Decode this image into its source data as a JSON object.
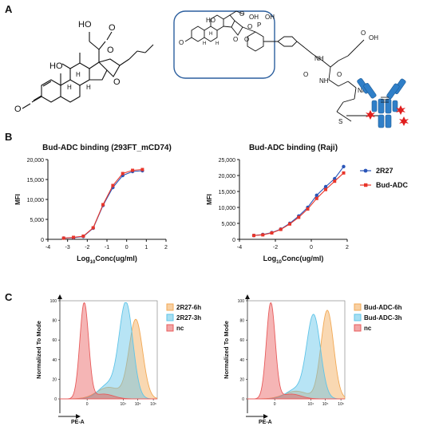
{
  "panels": {
    "a": "A",
    "b": "B",
    "c": "C"
  },
  "molecule": {
    "left_labels": {
      "ho_top": "HO",
      "o_top": "O",
      "ho_ring": "HO",
      "h1": "H",
      "h2": "H",
      "h3": "H",
      "o_ketone": "O",
      "o_ring1": "O",
      "o_ring2": "O"
    },
    "right_labels": {
      "o_ketone": "O",
      "ho": "HO",
      "oh1": "OH",
      "oh2": "OH",
      "p": "P",
      "o1": "O",
      "o2": "O",
      "o3": "O",
      "o4": "O",
      "h1": "H",
      "h2": "H",
      "h3": "H",
      "nh1": "NH",
      "nh2": "NH",
      "nh3": "NH",
      "oh_acid": "OH",
      "o5": "O",
      "o6": "O",
      "o7": "O",
      "s": "S"
    }
  },
  "chart_data": [
    {
      "type": "line",
      "title": "Bud-ADC binding (293FT_mCD74)",
      "xlabel": "Log10Conc(ug/ml)",
      "ylabel": "MFI",
      "xlim": [
        -4,
        2
      ],
      "ylim": [
        0,
        20000
      ],
      "xticks": [
        "-4",
        "-3",
        "-2",
        "-1",
        "0",
        "1",
        "2"
      ],
      "yticks": [
        "0",
        "5,000",
        "10,000",
        "15,000",
        "20,000"
      ],
      "series": [
        {
          "name": "2R27",
          "color": "#2a55b8",
          "x": [
            -3.2,
            -2.7,
            -2.2,
            -1.7,
            -1.2,
            -0.7,
            -0.2,
            0.3,
            0.8
          ],
          "y": [
            300,
            400,
            700,
            2800,
            8500,
            13000,
            16000,
            17000,
            17200
          ]
        },
        {
          "name": "Bud-ADC",
          "color": "#e8352a",
          "x": [
            -3.2,
            -2.7,
            -2.2,
            -1.7,
            -1.2,
            -0.7,
            -0.2,
            0.3,
            0.8
          ],
          "y": [
            300,
            500,
            800,
            2900,
            8700,
            13500,
            16500,
            17300,
            17500
          ]
        }
      ]
    },
    {
      "type": "line",
      "title": "Bud-ADC binding  (Raji)",
      "xlabel": "Log10Conc(ug/ml)",
      "ylabel": "MFI",
      "xlim": [
        -4,
        2
      ],
      "ylim": [
        0,
        25000
      ],
      "xticks": [
        "-4",
        "-2",
        "0",
        "2"
      ],
      "yticks": [
        "0",
        "5,000",
        "10,000",
        "15,000",
        "20,000",
        "25,000"
      ],
      "legend": [
        "2R27",
        "Bud-ADC"
      ],
      "legend_placement": "right",
      "series": [
        {
          "name": "2R27",
          "color": "#2a55b8",
          "x": [
            -3.2,
            -2.7,
            -2.2,
            -1.7,
            -1.2,
            -0.7,
            -0.2,
            0.3,
            0.8,
            1.3,
            1.8
          ],
          "y": [
            1200,
            1500,
            2100,
            3200,
            5000,
            7300,
            10000,
            13800,
            16500,
            19000,
            22800
          ]
        },
        {
          "name": "Bud-ADC",
          "color": "#e8352a",
          "x": [
            -3.2,
            -2.7,
            -2.2,
            -1.7,
            -1.2,
            -0.7,
            -0.2,
            0.3,
            0.8,
            1.3,
            1.8
          ],
          "y": [
            1200,
            1400,
            2000,
            3100,
            4800,
            6900,
            9500,
            12800,
            15600,
            18200,
            20800
          ]
        }
      ]
    },
    {
      "type": "area",
      "title": "",
      "xlabel": "PE-A",
      "ylabel": "Normalized To Mode",
      "ylim": [
        0,
        100
      ],
      "yticks": [
        "0",
        "20",
        "40",
        "60",
        "80",
        "100"
      ],
      "xticks": [
        "0",
        "10⁴",
        "10⁵",
        "10⁶"
      ],
      "legend": [
        "2R27-6h",
        "2R27-3h",
        "nc"
      ],
      "series": [
        {
          "name": "2R27-6h",
          "color": "#f2a955"
        },
        {
          "name": "2R27-3h",
          "color": "#5fc4e8"
        },
        {
          "name": "nc",
          "color": "#e85c5c"
        }
      ]
    },
    {
      "type": "area",
      "title": "",
      "xlabel": "PE-A",
      "ylabel": "Normalized To Mode",
      "ylim": [
        0,
        100
      ],
      "yticks": [
        "0",
        "20",
        "40",
        "60",
        "80",
        "100"
      ],
      "xticks": [
        "0",
        "10⁴",
        "10⁵",
        "10⁶"
      ],
      "legend": [
        "Bud-ADC-6h",
        "Bud-ADC-3h",
        "nc"
      ],
      "series": [
        {
          "name": "Bud-ADC-6h",
          "color": "#f2a955"
        },
        {
          "name": "Bud-ADC-3h",
          "color": "#5fc4e8"
        },
        {
          "name": "nc",
          "color": "#e85c5c"
        }
      ]
    }
  ]
}
